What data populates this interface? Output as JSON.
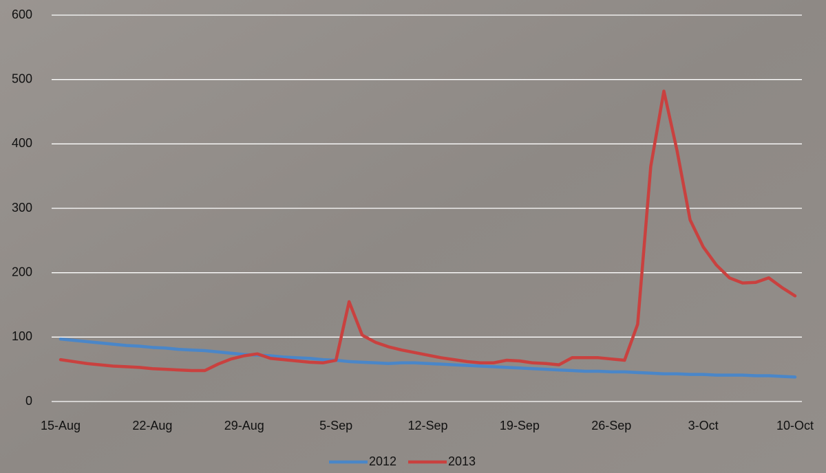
{
  "chart_data": {
    "type": "line",
    "categories": [
      "15-Aug",
      null,
      null,
      null,
      null,
      null,
      null,
      "22-Aug",
      null,
      null,
      null,
      null,
      null,
      null,
      "29-Aug",
      null,
      null,
      null,
      null,
      null,
      null,
      "5-Sep",
      null,
      null,
      null,
      null,
      null,
      null,
      "12-Sep",
      null,
      null,
      null,
      null,
      null,
      null,
      "19-Sep",
      null,
      null,
      null,
      null,
      null,
      null,
      "26-Sep",
      null,
      null,
      null,
      null,
      null,
      null,
      "3-Oct",
      null,
      null,
      null,
      null,
      null,
      null,
      "10-Oct"
    ],
    "series": [
      {
        "name": "2012",
        "color": "#4a86c8",
        "values": [
          97,
          95,
          93,
          91,
          89,
          87,
          86,
          84,
          83,
          81,
          80,
          79,
          77,
          75,
          73,
          72,
          71,
          69,
          68,
          67,
          65,
          64,
          62,
          61,
          60,
          59,
          60,
          60,
          59,
          58,
          57,
          56,
          55,
          54,
          53,
          52,
          51,
          50,
          49,
          48,
          47,
          47,
          46,
          46,
          45,
          44,
          43,
          43,
          42,
          42,
          41,
          41,
          41,
          40,
          40,
          39,
          38
        ]
      },
      {
        "name": "2013",
        "color": "#c9413f",
        "values": [
          65,
          62,
          59,
          57,
          55,
          54,
          53,
          51,
          50,
          49,
          48,
          48,
          58,
          66,
          71,
          74,
          67,
          65,
          63,
          61,
          60,
          64,
          155,
          103,
          92,
          85,
          80,
          76,
          72,
          68,
          65,
          62,
          60,
          60,
          64,
          63,
          60,
          59,
          57,
          68,
          68,
          68,
          66,
          64,
          120,
          365,
          482,
          390,
          282,
          240,
          212,
          192,
          184,
          185,
          192,
          177,
          164
        ]
      }
    ],
    "ylim": [
      0,
      600
    ],
    "yticks": [
      0,
      100,
      200,
      300,
      400,
      500,
      600
    ],
    "grid": true,
    "legend": "bottom"
  }
}
